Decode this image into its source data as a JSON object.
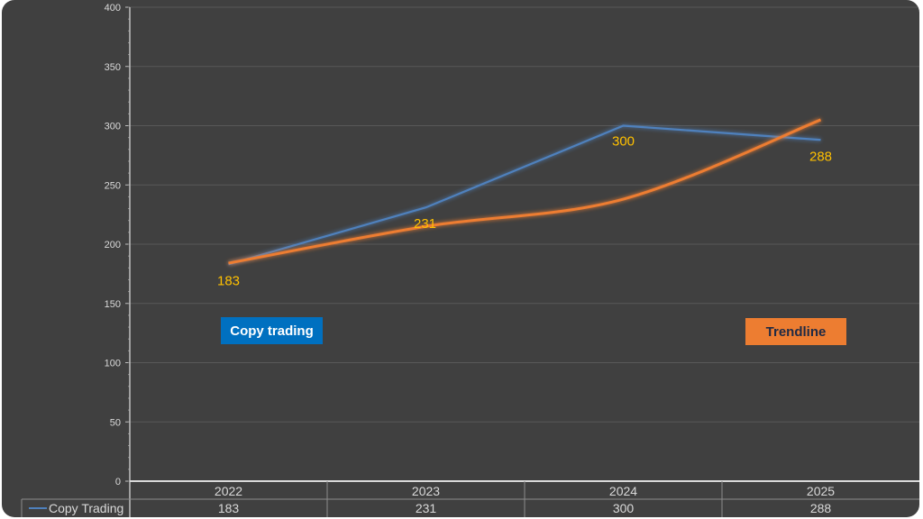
{
  "colors": {
    "background": "#404040",
    "series_line": "#4f81bd",
    "trendline": "#ed7d31",
    "data_label": "#ffc000",
    "axis_text": "#d9d9d9",
    "gridline": "#595959",
    "copy_tag_bg": "#0070c0",
    "trend_tag_bg": "#ed7d31"
  },
  "labels": {
    "copy_trading_tag": "Copy trading",
    "trendline_tag": "Trendline"
  },
  "chart_data": {
    "type": "line",
    "categories": [
      "2022",
      "2023",
      "2024",
      "2025"
    ],
    "series": [
      {
        "name": "Copy Trading",
        "values": [
          183,
          231,
          300,
          288
        ],
        "color": "#4f81bd"
      }
    ],
    "trendline": {
      "values": [
        184,
        215,
        238,
        305
      ],
      "type": "polynomial"
    },
    "ylim": [
      0,
      400
    ],
    "yticks": [
      0,
      50,
      100,
      150,
      200,
      250,
      300,
      350,
      400
    ],
    "grid": true,
    "data_table": true,
    "legend": "data-table",
    "data_labels": [
      "183",
      "231",
      "300",
      "288"
    ]
  }
}
